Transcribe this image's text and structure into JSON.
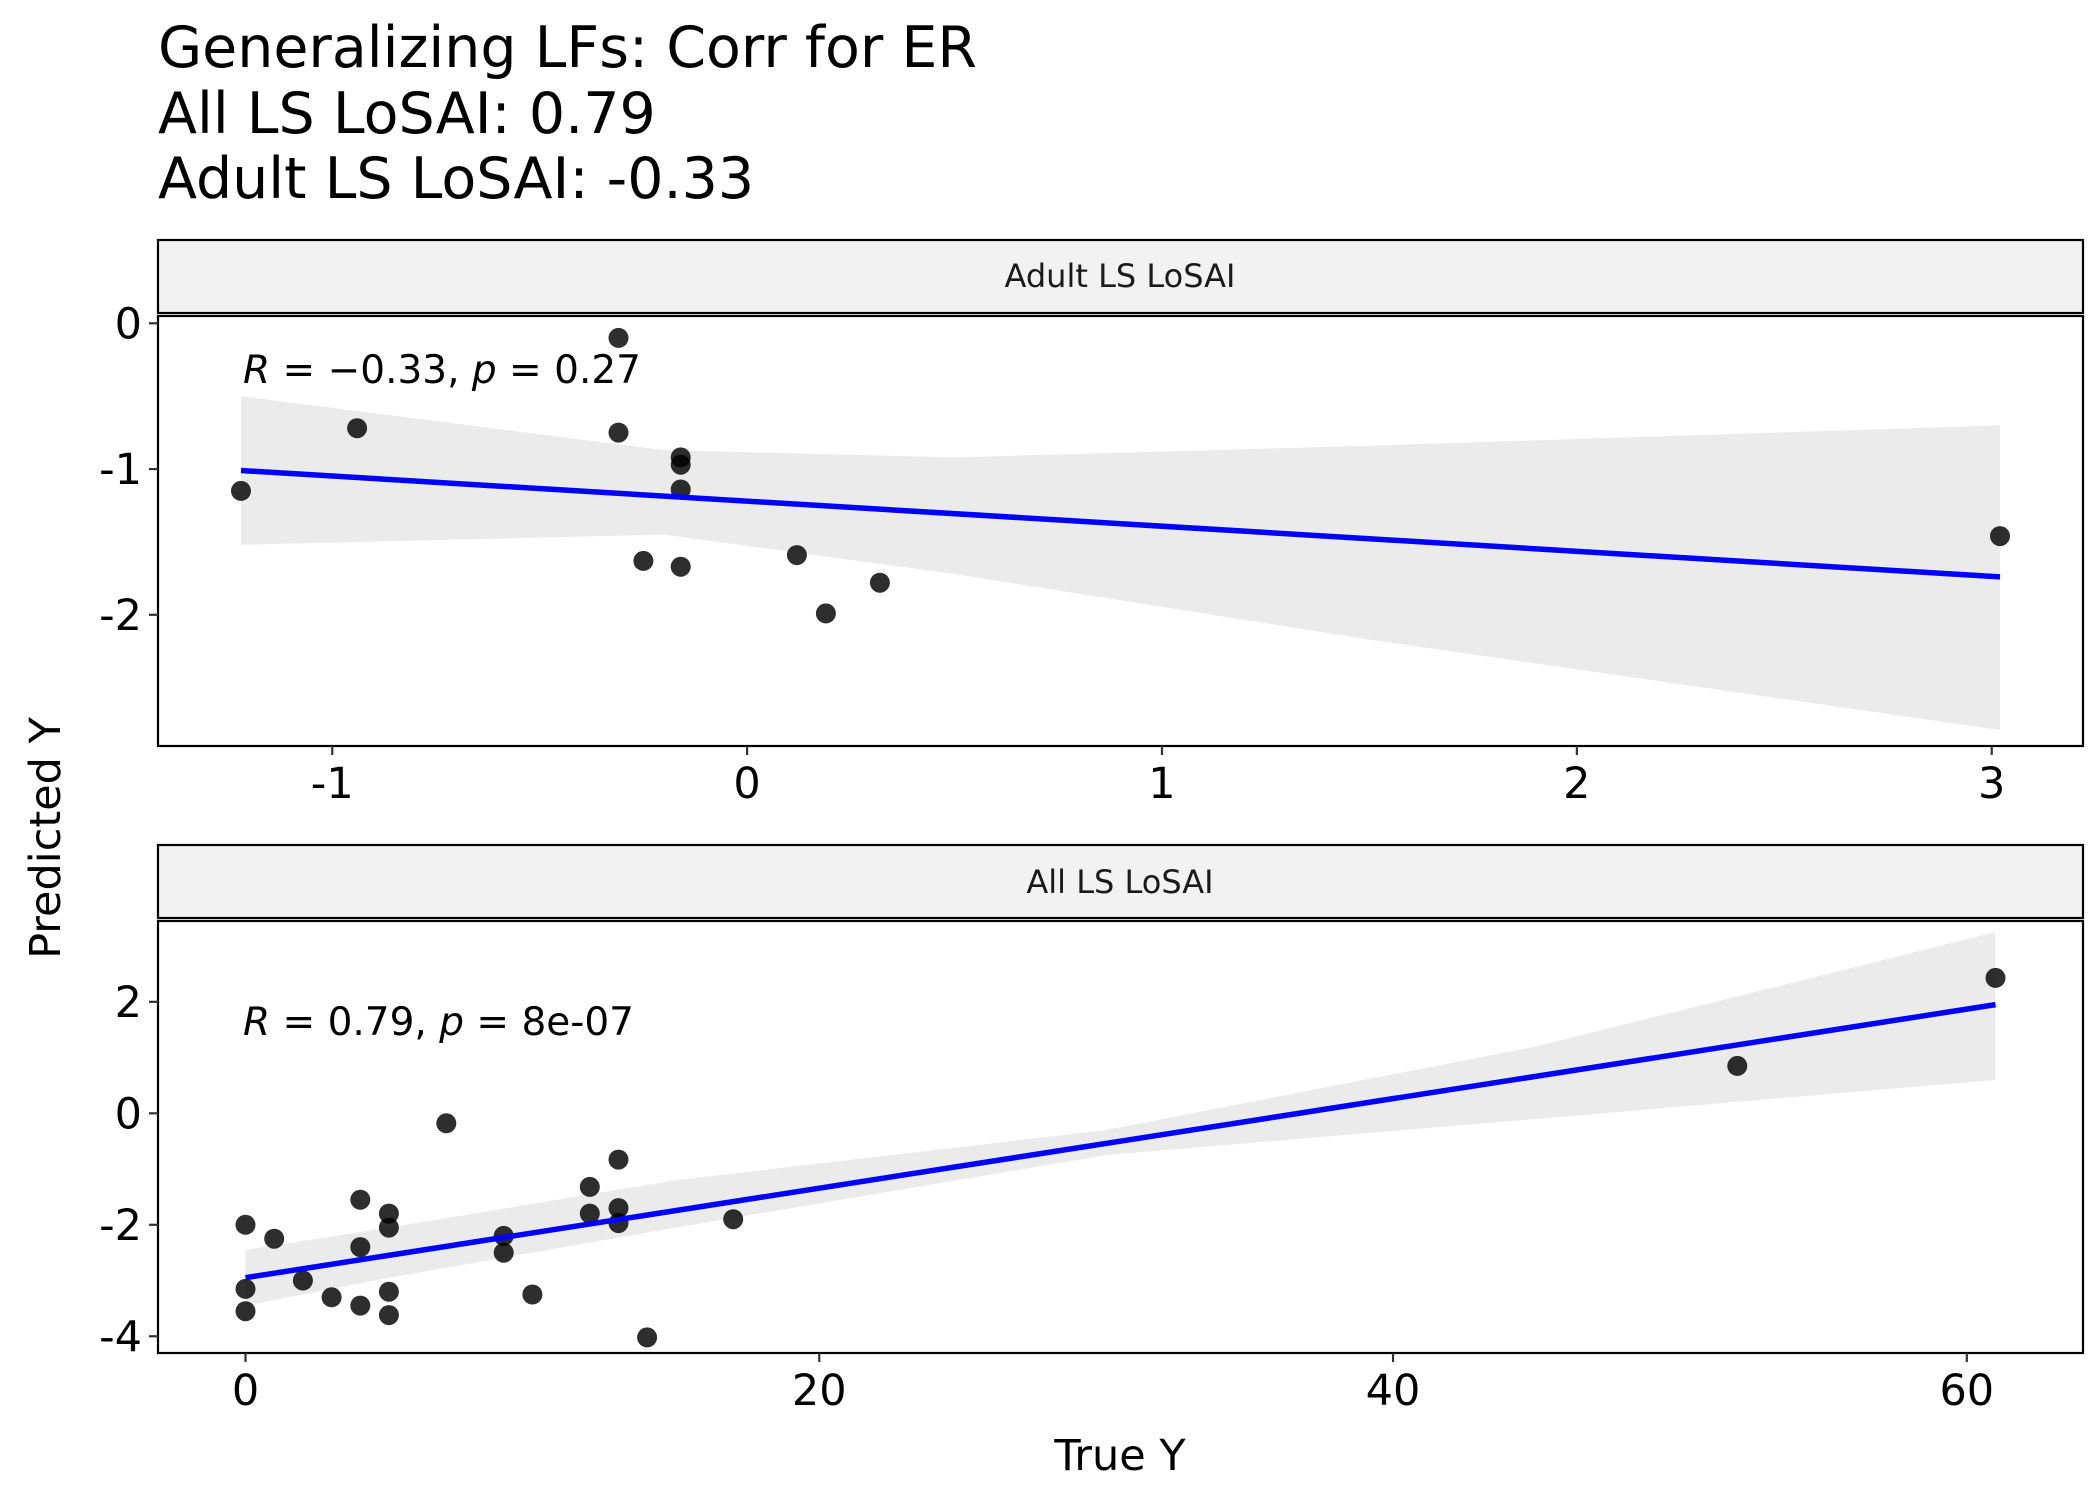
{
  "title_lines": [
    "Generalizing LFs: Corr for ER",
    "All LS LoSAI: 0.79",
    "Adult LS LoSAI: -0.33"
  ],
  "ylabel": "Predicted Y",
  "xlabel": "True Y",
  "colors": {
    "line": "#0000ff",
    "ribbon": "#ebebeb",
    "point": "#000000",
    "strip_fill": "#f2f2f2",
    "panel_border": "#000000"
  },
  "chart_data": [
    {
      "type": "scatter",
      "panel": "Adult LS LoSAI",
      "strip_label": "Adult LS LoSAI",
      "annotation": {
        "r_label": "R",
        "r_text": " = −0.33, ",
        "p_label": "p",
        "p_text": " = 0.27"
      },
      "xlim": [
        -1.42,
        3.22
      ],
      "ylim": [
        -2.9,
        0.05
      ],
      "xticks": [
        -1,
        0,
        1,
        2,
        3
      ],
      "xtick_labels": [
        "-1",
        "0",
        "1",
        "2",
        "3"
      ],
      "yticks": [
        0,
        -1,
        -2
      ],
      "ytick_labels": [
        "0",
        "-1",
        "-2"
      ],
      "points": [
        {
          "x": -1.22,
          "y": -1.15
        },
        {
          "x": -0.94,
          "y": -0.72
        },
        {
          "x": -0.31,
          "y": -0.1
        },
        {
          "x": -0.31,
          "y": -0.75
        },
        {
          "x": -0.25,
          "y": -1.63
        },
        {
          "x": -0.16,
          "y": -0.92
        },
        {
          "x": -0.16,
          "y": -0.97
        },
        {
          "x": -0.16,
          "y": -1.14
        },
        {
          "x": -0.16,
          "y": -1.67
        },
        {
          "x": 0.12,
          "y": -1.59
        },
        {
          "x": 0.19,
          "y": -1.99
        },
        {
          "x": 0.32,
          "y": -1.78
        },
        {
          "x": 3.02,
          "y": -1.46
        }
      ],
      "fit": {
        "x": [
          -1.22,
          3.02
        ],
        "y": [
          -1.01,
          -1.74
        ]
      },
      "band": {
        "x": [
          -1.22,
          -0.2,
          0.5,
          1.5,
          3.02
        ],
        "upper": [
          -0.5,
          -0.87,
          -0.92,
          -0.84,
          -0.7
        ],
        "lower": [
          -1.52,
          -1.45,
          -1.72,
          -2.17,
          -2.79
        ]
      }
    },
    {
      "type": "scatter",
      "panel": "All LS LoSAI",
      "strip_label": "All LS LoSAI",
      "annotation": {
        "r_label": "R",
        "r_text": " = 0.79, ",
        "p_label": "p",
        "p_text": " = 8e-07"
      },
      "xlim": [
        -3.05,
        64.05
      ],
      "ylim": [
        -4.3,
        3.45
      ],
      "xticks": [
        0,
        20,
        40,
        60
      ],
      "xtick_labels": [
        "0",
        "20",
        "40",
        "60"
      ],
      "yticks": [
        2,
        0,
        -2,
        -4
      ],
      "ytick_labels": [
        "2",
        "0",
        "-2",
        "-4"
      ],
      "points": [
        {
          "x": 0,
          "y": -2.0
        },
        {
          "x": 0,
          "y": -3.15
        },
        {
          "x": 0,
          "y": -3.55
        },
        {
          "x": 1,
          "y": -2.25
        },
        {
          "x": 2,
          "y": -3.0
        },
        {
          "x": 3,
          "y": -3.3
        },
        {
          "x": 4,
          "y": -1.55
        },
        {
          "x": 4,
          "y": -2.4
        },
        {
          "x": 4,
          "y": -3.45
        },
        {
          "x": 5,
          "y": -1.8
        },
        {
          "x": 5,
          "y": -2.05
        },
        {
          "x": 5,
          "y": -3.2
        },
        {
          "x": 5,
          "y": -3.62
        },
        {
          "x": 7,
          "y": -0.18
        },
        {
          "x": 9,
          "y": -2.2
        },
        {
          "x": 9,
          "y": -2.5
        },
        {
          "x": 10,
          "y": -3.25
        },
        {
          "x": 12,
          "y": -1.32
        },
        {
          "x": 12,
          "y": -1.8
        },
        {
          "x": 13,
          "y": -0.83
        },
        {
          "x": 13,
          "y": -1.7
        },
        {
          "x": 13,
          "y": -1.97
        },
        {
          "x": 14,
          "y": -4.02
        },
        {
          "x": 17,
          "y": -1.9
        },
        {
          "x": 52,
          "y": 0.85
        },
        {
          "x": 61,
          "y": 2.43
        }
      ],
      "fit": {
        "x": [
          0,
          61
        ],
        "y": [
          -2.95,
          1.95
        ]
      },
      "band": {
        "x": [
          0,
          5,
          15,
          30,
          45,
          61
        ],
        "upper": [
          -2.45,
          -2.05,
          -1.2,
          -0.3,
          1.2,
          3.25
        ],
        "lower": [
          -3.45,
          -2.95,
          -2.05,
          -0.75,
          -0.1,
          0.6
        ]
      }
    }
  ]
}
